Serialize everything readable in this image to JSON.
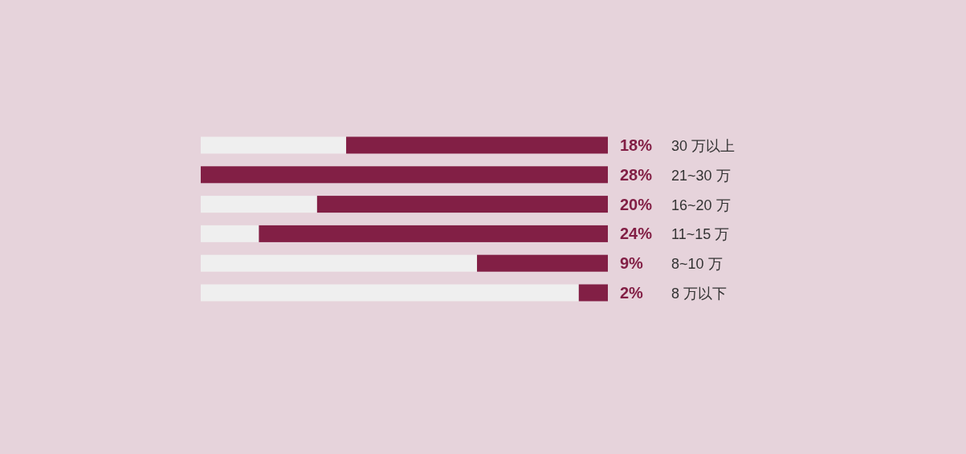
{
  "chart_data": {
    "type": "bar",
    "orientation": "horizontal",
    "categories": [
      "30 万以上",
      "21~30 万",
      "16~20 万",
      "11~15 万",
      "8~10 万",
      "8 万以下"
    ],
    "values": [
      18,
      28,
      20,
      24,
      9,
      2
    ],
    "value_labels": [
      "18%",
      "28%",
      "20%",
      "24%",
      "9%",
      "2%"
    ],
    "color": "#821f45",
    "xlim": [
      28,
      0
    ]
  }
}
